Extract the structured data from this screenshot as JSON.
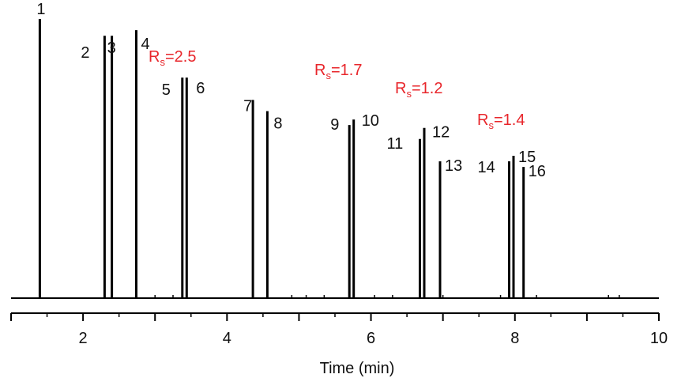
{
  "chart_data": {
    "type": "line",
    "title": "",
    "xlabel": "Time (min)",
    "ylabel": "",
    "xlim": [
      1,
      10
    ],
    "ylim": [
      0,
      100
    ],
    "x_ticks": [
      2,
      4,
      6,
      8,
      10
    ],
    "x_tick_labels": [
      "2",
      "4",
      "6",
      "8",
      "10"
    ],
    "grid": false,
    "legend": "none",
    "line_color": "#000000",
    "annotation_color": "#e8262b",
    "peaks": [
      {
        "label": "1",
        "time": 1.4,
        "height": 100
      },
      {
        "label": "2",
        "time": 2.3,
        "height": 94
      },
      {
        "label": "3",
        "time": 2.4,
        "height": 94
      },
      {
        "label": "4",
        "time": 2.74,
        "height": 96
      },
      {
        "label": "5",
        "time": 3.38,
        "height": 79
      },
      {
        "label": "6",
        "time": 3.44,
        "height": 79
      },
      {
        "label": "7",
        "time": 4.36,
        "height": 71
      },
      {
        "label": "8",
        "time": 4.56,
        "height": 67
      },
      {
        "label": "9",
        "time": 5.7,
        "height": 62
      },
      {
        "label": "10",
        "time": 5.76,
        "height": 64
      },
      {
        "label": "11",
        "time": 6.68,
        "height": 57
      },
      {
        "label": "12",
        "time": 6.74,
        "height": 61
      },
      {
        "label": "13",
        "time": 6.96,
        "height": 49
      },
      {
        "label": "14",
        "time": 7.92,
        "height": 49
      },
      {
        "label": "15",
        "time": 7.98,
        "height": 51
      },
      {
        "label": "16",
        "time": 8.12,
        "height": 47
      }
    ],
    "annotations": [
      {
        "main": "R",
        "sub": "s",
        "value": "=2.5"
      },
      {
        "main": "R",
        "sub": "s",
        "value": "=1.7"
      },
      {
        "main": "R",
        "sub": "s",
        "value": "=1.2"
      },
      {
        "main": "R",
        "sub": "s",
        "value": "=1.4"
      }
    ]
  }
}
